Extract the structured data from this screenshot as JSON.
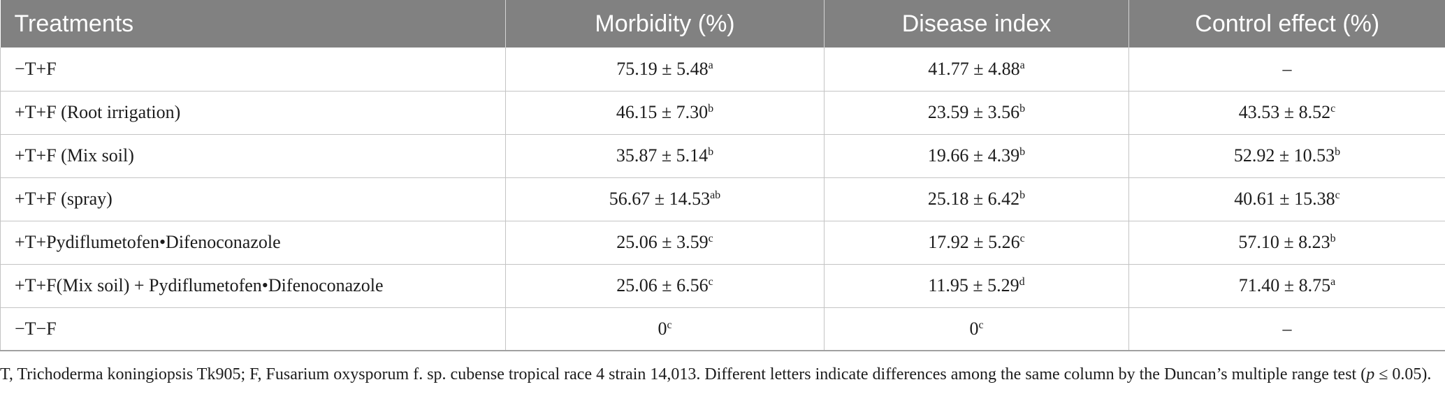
{
  "table": {
    "headers": [
      "Treatments",
      "Morbidity (%)",
      "Disease index",
      "Control effect (%)"
    ],
    "rows": [
      {
        "treatment": "−T+F",
        "morbidity": "75.19 ± 5.48",
        "morbidity_sup": "a",
        "disease": "41.77 ± 4.88",
        "disease_sup": "a",
        "control": "–",
        "control_sup": ""
      },
      {
        "treatment": "+T+F (Root irrigation)",
        "morbidity": "46.15 ± 7.30",
        "morbidity_sup": "b",
        "disease": "23.59 ± 3.56",
        "disease_sup": "b",
        "control": "43.53 ± 8.52",
        "control_sup": "c"
      },
      {
        "treatment": "+T+F (Mix soil)",
        "morbidity": "35.87 ± 5.14",
        "morbidity_sup": "b",
        "disease": "19.66 ± 4.39",
        "disease_sup": "b",
        "control": "52.92 ± 10.53",
        "control_sup": "b"
      },
      {
        "treatment": "+T+F (spray)",
        "morbidity": "56.67 ± 14.53",
        "morbidity_sup": "ab",
        "disease": "25.18 ± 6.42",
        "disease_sup": "b",
        "control": "40.61 ± 15.38",
        "control_sup": "c"
      },
      {
        "treatment": "+T+Pydiflumetofen•Difenoconazole",
        "morbidity": "25.06 ± 3.59",
        "morbidity_sup": "c",
        "disease": "17.92 ± 5.26",
        "disease_sup": "c",
        "control": "57.10 ± 8.23",
        "control_sup": "b"
      },
      {
        "treatment": "+T+F(Mix soil) + Pydiflumetofen•Difenoconazole",
        "morbidity": "25.06 ± 6.56",
        "morbidity_sup": "c",
        "disease": "11.95 ± 5.29",
        "disease_sup": "d",
        "control": "71.40 ± 8.75",
        "control_sup": "a"
      },
      {
        "treatment": "−T−F",
        "morbidity": "0",
        "morbidity_sup": "c",
        "disease": "0",
        "disease_sup": "c",
        "control": "–",
        "control_sup": ""
      }
    ]
  },
  "footnote": {
    "text_before": "T, Trichoderma koningiopsis Tk905; F, Fusarium oxysporum f. sp. cubense tropical race 4 strain 14,013. Different letters indicate differences among the same column by the Duncan’s multiple range test (",
    "p_symbol": "p",
    "text_after": " ≤ 0.05)."
  },
  "colors": {
    "header_bg": "#818181",
    "header_text": "#ffffff",
    "grid_line": "#c4c4c4",
    "body_text": "#1c1c1c"
  }
}
